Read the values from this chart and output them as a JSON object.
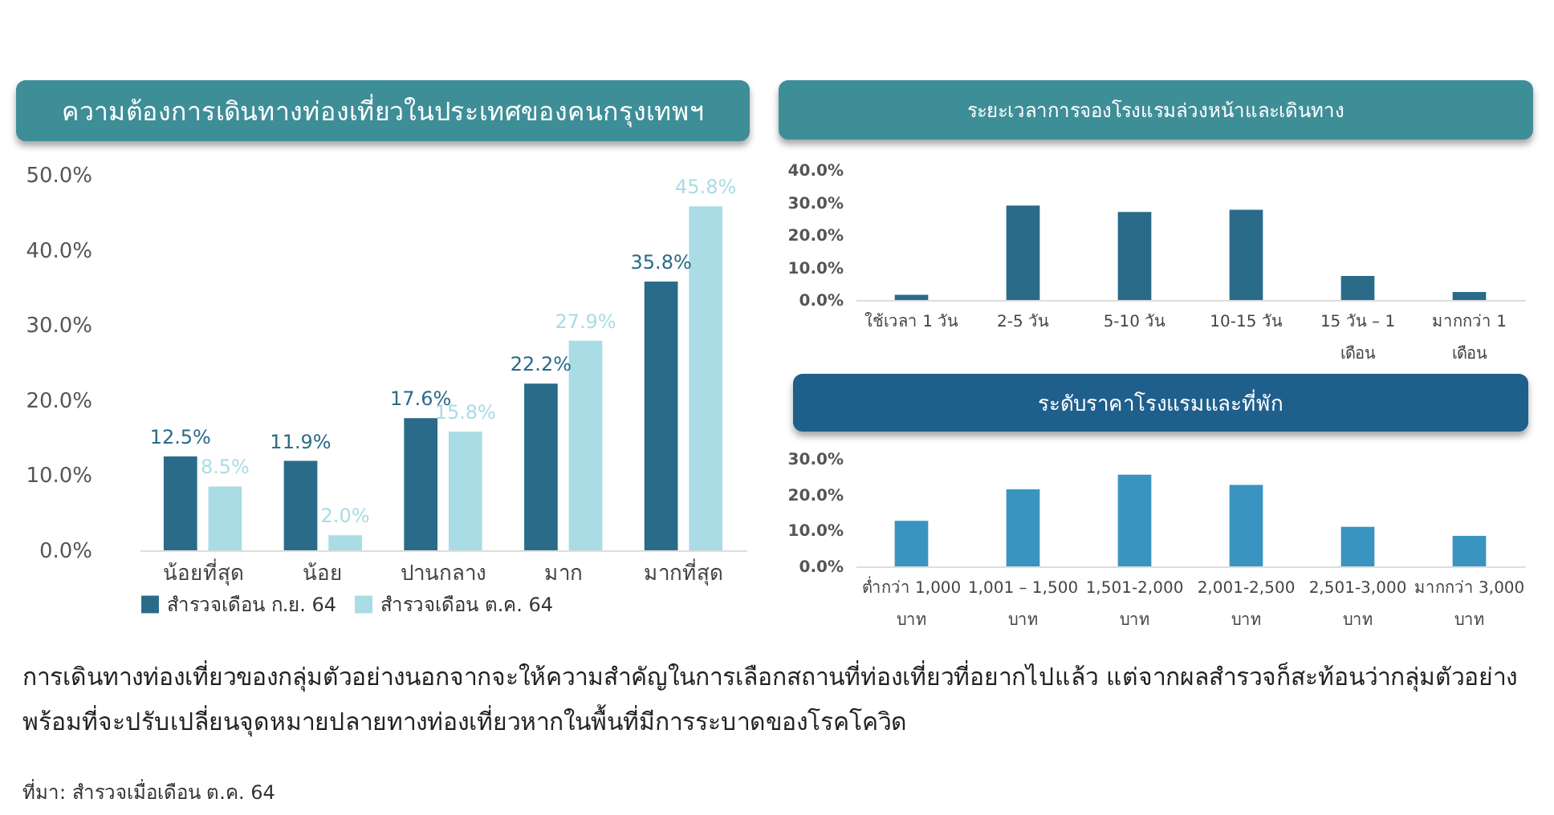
{
  "chart_data": [
    {
      "type": "bar",
      "title": "ความต้องการเดินทางท่องเที่ยวในประเทศของคนกรุงเทพฯ",
      "categories": [
        "น้อยที่สุด",
        "น้อย",
        "ปานกลาง",
        "มาก",
        "มากที่สุด"
      ],
      "series": [
        {
          "name": "สำรวจเดือน ก.ย. 64",
          "color": "#2a6b8a",
          "values": [
            12.5,
            11.9,
            17.6,
            22.2,
            35.8
          ],
          "value_labels": [
            "12.5%",
            "11.9%",
            "17.6%",
            "22.2%",
            "35.8%"
          ]
        },
        {
          "name": "สำรวจเดือน ต.ค. 64",
          "color": "#a9dce4",
          "values": [
            8.5,
            2.0,
            15.8,
            27.9,
            45.8
          ],
          "value_labels": [
            "8.5%",
            "2.0%",
            "15.8%",
            "27.9%",
            "45.8%"
          ]
        }
      ],
      "ylim": [
        0,
        50
      ],
      "yticks": [
        {
          "value": 0,
          "label": "0.0%"
        },
        {
          "value": 10,
          "label": "10.0%"
        },
        {
          "value": 20,
          "label": "20.0%"
        },
        {
          "value": 30,
          "label": "30.0%"
        },
        {
          "value": 40,
          "label": "40.0%"
        },
        {
          "value": 50,
          "label": "50.0%"
        }
      ],
      "legend": "bottom",
      "annotations": [
        "การเดินทางท่องเที่ยวของกลุ่มตัวอย่างนอกจากจะให้ความสำคัญในการเลือกสถานที่ท่องเที่ยวที่อยากไปแล้ว แต่จากผลสำรวจก็สะท้อนว่ากลุ่มตัวอย่างพร้อมที่จะปรับเปลี่ยนจุดหมายปลายทางท่องเที่ยวหากในพื้นที่มีการระบาดของโรคโควิด",
        "ที่มา: สำรวจเมื่อเดือน ต.ค. 64"
      ]
    },
    {
      "type": "bar",
      "title": "ระยะเวลาการจองโรงแรมล่วงหน้าและเดินทาง",
      "categories": [
        "ใช้เวลา 1 วัน",
        "2-5 วัน",
        "5-10 วัน",
        "10-15 วัน",
        "15 วัน – 1 เดือน",
        "มากกว่า 1 เดือน"
      ],
      "values": [
        1.6,
        29.1,
        27.1,
        27.8,
        7.4,
        2.5
      ],
      "color": "#2a6b8a",
      "ylim": [
        0,
        40
      ],
      "yticks": [
        {
          "value": 0,
          "label": "0.0%"
        },
        {
          "value": 10,
          "label": "10.0%"
        },
        {
          "value": 20,
          "label": "20.0%"
        },
        {
          "value": 30,
          "label": "30.0%"
        },
        {
          "value": 40,
          "label": "40.0%"
        }
      ]
    },
    {
      "type": "bar",
      "title": "ระดับราคาโรงแรมและที่พัก",
      "categories": [
        "ต่ำกว่า 1,000 บาท",
        "1,001 – 1,500 บาท",
        "1,501-2,000 บาท",
        "2,001-2,500 บาท",
        "2,501-3,000 บาท",
        "มากกว่า 3,000 บาท"
      ],
      "values": [
        12.7,
        21.5,
        25.6,
        22.7,
        11.0,
        8.5
      ],
      "color": "#3a94c0",
      "ylim": [
        0,
        30
      ],
      "yticks": [
        {
          "value": 0,
          "label": "0.0%"
        },
        {
          "value": 10,
          "label": "10.0%"
        },
        {
          "value": 20,
          "label": "20.0%"
        },
        {
          "value": 30,
          "label": "30.0%"
        }
      ]
    }
  ]
}
